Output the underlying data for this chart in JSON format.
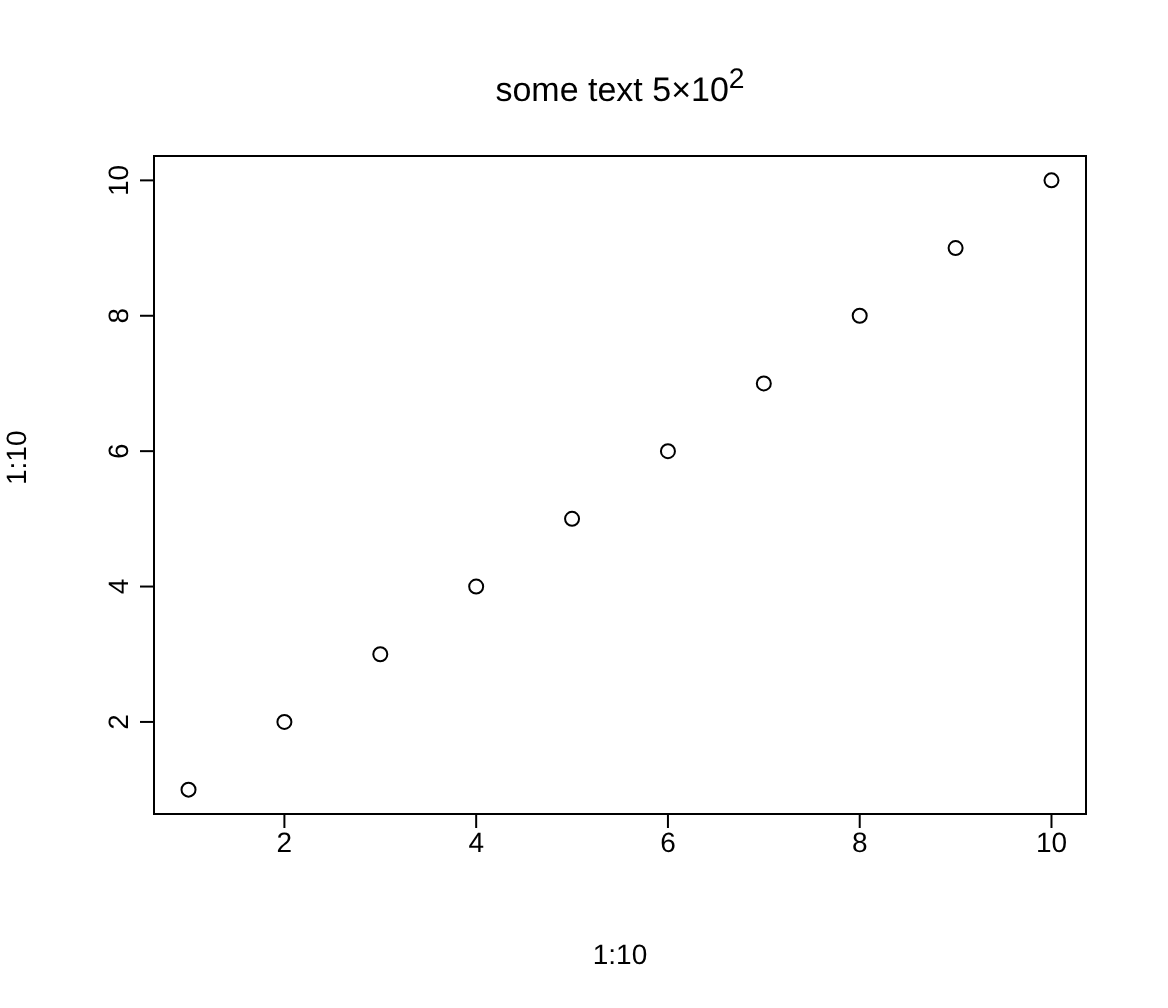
{
  "chart_data": {
    "type": "scatter",
    "title": "some text 5×10$^{2}$",
    "xlabel": "1:10",
    "ylabel": "1:10",
    "x": [
      1,
      2,
      3,
      4,
      5,
      6,
      7,
      8,
      9,
      10
    ],
    "values": [
      1,
      2,
      3,
      4,
      5,
      6,
      7,
      8,
      9,
      10
    ],
    "color": "#000000",
    "marker": "circle",
    "grid": false,
    "legend": false,
    "xlim": [
      0.64,
      10.36
    ],
    "ylim": [
      0.64,
      10.36
    ],
    "xticks": [
      2,
      4,
      6,
      8,
      10
    ],
    "yticks": [
      2,
      4,
      6,
      8,
      10
    ]
  }
}
